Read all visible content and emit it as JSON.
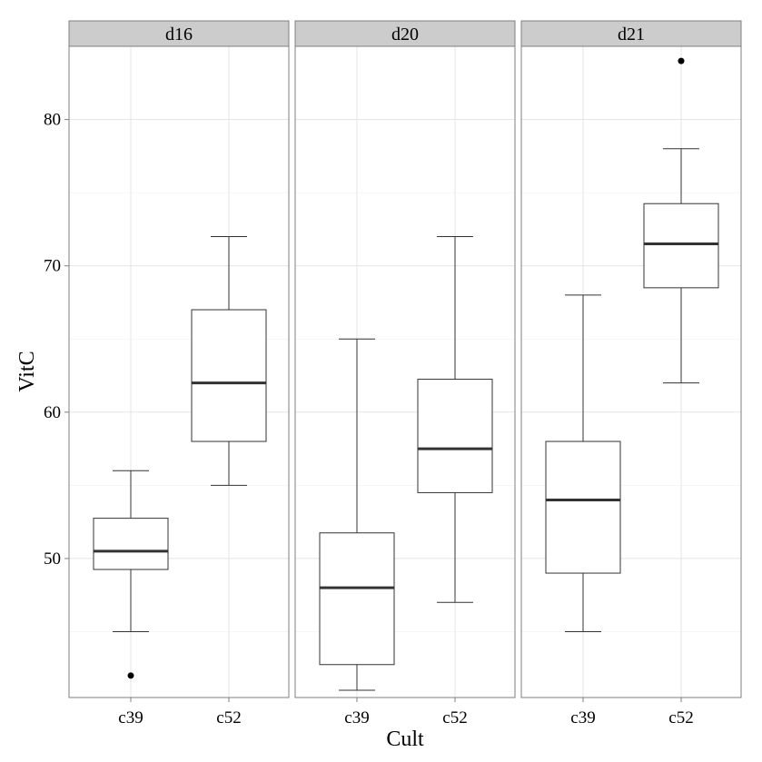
{
  "chart_data": {
    "type": "boxplot",
    "xlabel": "Cult",
    "ylabel": "VitC",
    "ylim": [
      40.5,
      85
    ],
    "y_ticks": [
      50,
      60,
      70,
      80
    ],
    "categories": [
      "c39",
      "c52"
    ],
    "grid": true,
    "panels": [
      {
        "name": "d16",
        "boxes": [
          {
            "category": "c39",
            "whisker_low": 45,
            "q1": 49.25,
            "median": 50.5,
            "q3": 52.75,
            "whisker_high": 56,
            "outliers": [
              42
            ]
          },
          {
            "category": "c52",
            "whisker_low": 55,
            "q1": 58,
            "median": 62,
            "q3": 67,
            "whisker_high": 72,
            "outliers": []
          }
        ]
      },
      {
        "name": "d20",
        "boxes": [
          {
            "category": "c39",
            "whisker_low": 41,
            "q1": 42.75,
            "median": 48,
            "q3": 51.75,
            "whisker_high": 65,
            "outliers": []
          },
          {
            "category": "c52",
            "whisker_low": 47,
            "q1": 54.5,
            "median": 57.5,
            "q3": 62.25,
            "whisker_high": 72,
            "outliers": []
          }
        ]
      },
      {
        "name": "d21",
        "boxes": [
          {
            "category": "c39",
            "whisker_low": 45,
            "q1": 49,
            "median": 54,
            "q3": 58,
            "whisker_high": 68,
            "outliers": []
          },
          {
            "category": "c52",
            "whisker_low": 62,
            "q1": 68.5,
            "median": 71.5,
            "q3": 74.25,
            "whisker_high": 78,
            "outliers": [
              84
            ]
          }
        ]
      }
    ]
  }
}
